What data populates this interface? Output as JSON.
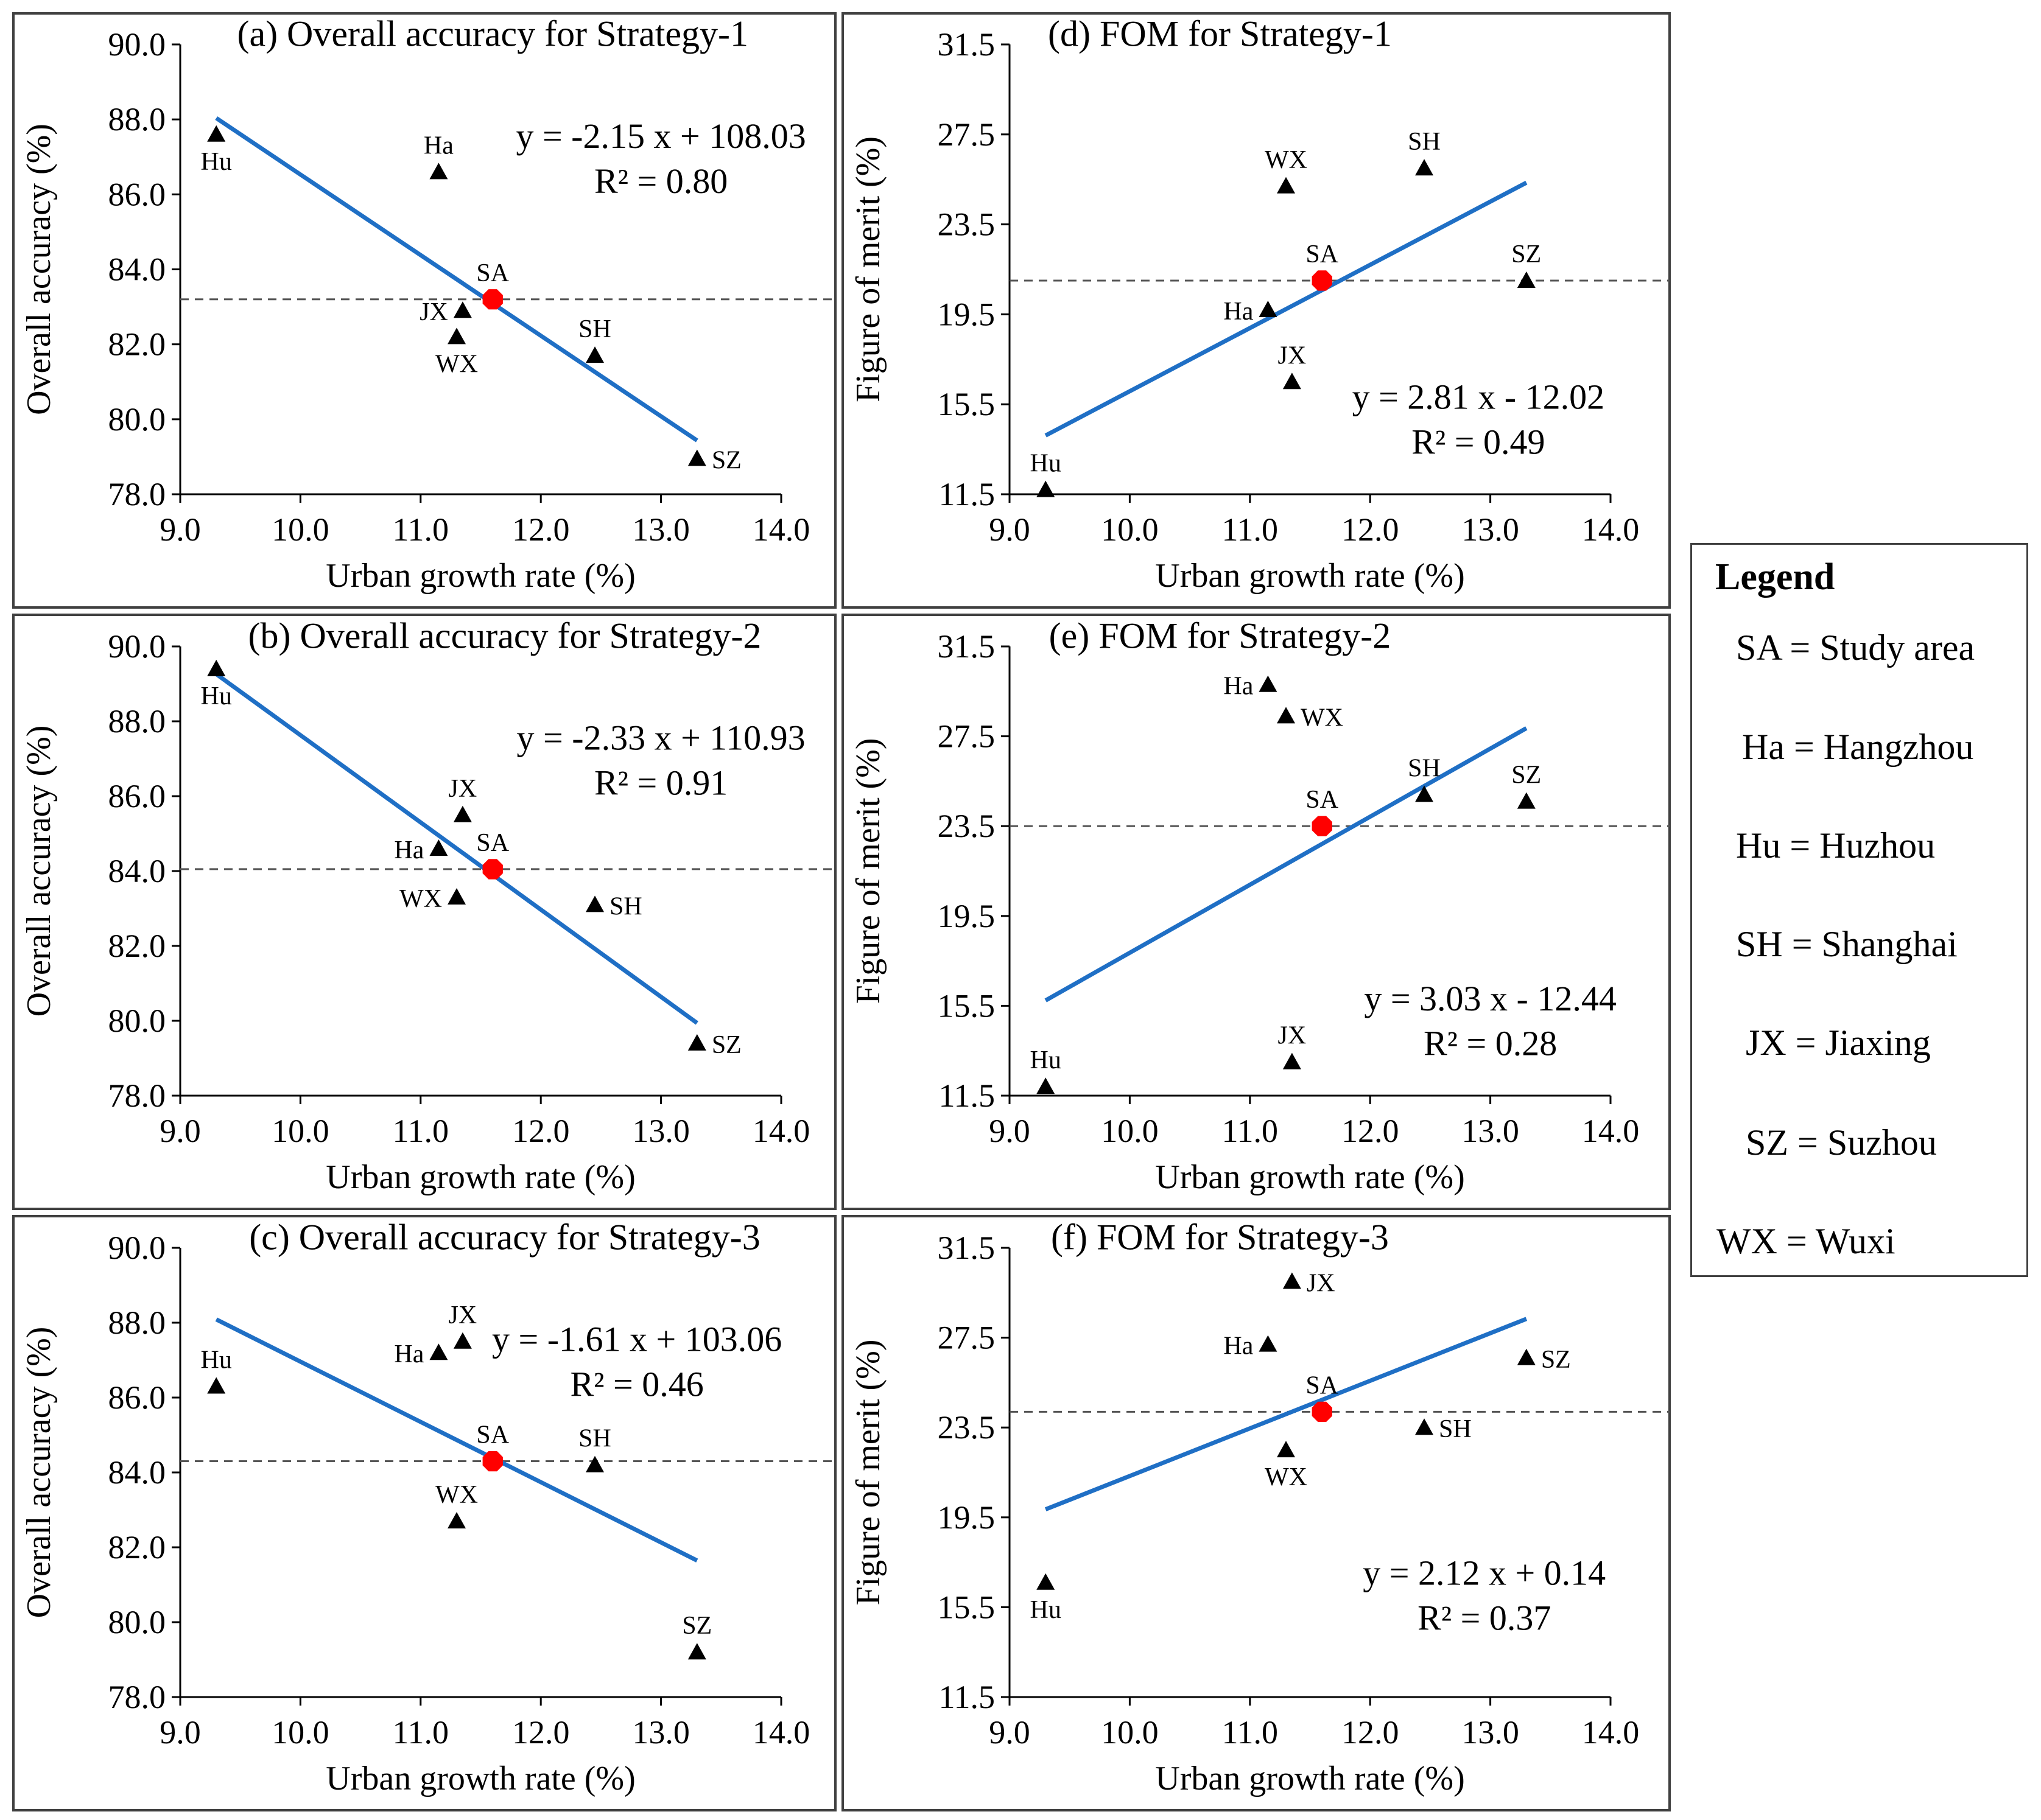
{
  "legend": {
    "title": "Legend",
    "items": [
      "SA = Study area",
      "Ha = Hangzhou",
      "Hu = Huzhou",
      "SH = Shanghai",
      "JX = Jiaxing",
      "SZ = Suzhou",
      "WX = Wuxi"
    ]
  },
  "colors": {
    "trend": "#1f6fc5",
    "study_area": "#ff0000",
    "city_marker": "#000000",
    "axis": "#000000",
    "mean_line": "#555555"
  },
  "chart_data": [
    {
      "id": "a",
      "type": "scatter",
      "title": "(a) Overall accuracy for Strategy-1",
      "xlabel": "Urban growth rate (%)",
      "ylabel": "Overall accuracy (%)",
      "xlim": [
        9.0,
        14.0
      ],
      "ylim": [
        78.0,
        90.0
      ],
      "xticks": [
        "9.0",
        "10.0",
        "11.0",
        "12.0",
        "13.0",
        "14.0"
      ],
      "yticks": [
        "78.0",
        "80.0",
        "82.0",
        "84.0",
        "86.0",
        "88.0",
        "90.0"
      ],
      "equation": "y = -2.15 x + 108.03",
      "r2": "R² = 0.80",
      "trend": {
        "slope": -2.15,
        "intercept": 108.03,
        "x_range": [
          9.3,
          13.3
        ]
      },
      "mean_y": 83.2,
      "points": [
        {
          "label": "Hu",
          "x": 9.3,
          "y": 87.6,
          "lpos": "below"
        },
        {
          "label": "Ha",
          "x": 11.15,
          "y": 86.6,
          "lpos": "above"
        },
        {
          "label": "SA",
          "x": 11.6,
          "y": 83.2,
          "lpos": "above",
          "study": true
        },
        {
          "label": "JX",
          "x": 11.35,
          "y": 82.9,
          "lpos": "left"
        },
        {
          "label": "WX",
          "x": 11.3,
          "y": 82.2,
          "lpos": "below"
        },
        {
          "label": "SH",
          "x": 12.45,
          "y": 81.7,
          "lpos": "above"
        },
        {
          "label": "SZ",
          "x": 13.3,
          "y": 78.95,
          "lpos": "right"
        }
      ]
    },
    {
      "id": "b",
      "type": "scatter",
      "title": "(b) Overall accuracy for Strategy-2",
      "xlabel": "Urban growth rate (%)",
      "ylabel": "Overall accuracy (%)",
      "xlim": [
        9.0,
        14.0
      ],
      "ylim": [
        78.0,
        90.0
      ],
      "xticks": [
        "9.0",
        "10.0",
        "11.0",
        "12.0",
        "13.0",
        "14.0"
      ],
      "yticks": [
        "78.0",
        "80.0",
        "82.0",
        "84.0",
        "86.0",
        "88.0",
        "90.0"
      ],
      "equation": "y = -2.33 x + 110.93",
      "r2": "R² = 0.91",
      "trend": {
        "slope": -2.33,
        "intercept": 110.93,
        "x_range": [
          9.3,
          13.3
        ]
      },
      "mean_y": 84.05,
      "points": [
        {
          "label": "Hu",
          "x": 9.3,
          "y": 89.4,
          "lpos": "below"
        },
        {
          "label": "JX",
          "x": 11.35,
          "y": 85.5,
          "lpos": "above"
        },
        {
          "label": "Ha",
          "x": 11.15,
          "y": 84.6,
          "lpos": "left"
        },
        {
          "label": "SA",
          "x": 11.6,
          "y": 84.05,
          "lpos": "above",
          "study": true
        },
        {
          "label": "WX",
          "x": 11.3,
          "y": 83.3,
          "lpos": "left"
        },
        {
          "label": "SH",
          "x": 12.45,
          "y": 83.1,
          "lpos": "right"
        },
        {
          "label": "SZ",
          "x": 13.3,
          "y": 79.4,
          "lpos": "right"
        }
      ]
    },
    {
      "id": "c",
      "type": "scatter",
      "title": "(c) Overall accuracy for Strategy-3",
      "xlabel": "Urban growth rate (%)",
      "ylabel": "Overall accuracy (%)",
      "xlim": [
        9.0,
        14.0
      ],
      "ylim": [
        78.0,
        90.0
      ],
      "xticks": [
        "9.0",
        "10.0",
        "11.0",
        "12.0",
        "13.0",
        "14.0"
      ],
      "yticks": [
        "78.0",
        "80.0",
        "82.0",
        "84.0",
        "86.0",
        "88.0",
        "90.0"
      ],
      "equation": "y = -1.61 x + 103.06",
      "r2": "R² = 0.46",
      "trend": {
        "slope": -1.61,
        "intercept": 103.06,
        "x_range": [
          9.3,
          13.3
        ]
      },
      "mean_y": 84.3,
      "points": [
        {
          "label": "JX",
          "x": 11.35,
          "y": 87.5,
          "lpos": "above"
        },
        {
          "label": "Ha",
          "x": 11.15,
          "y": 87.2,
          "lpos": "left"
        },
        {
          "label": "Hu",
          "x": 9.3,
          "y": 86.3,
          "lpos": "above"
        },
        {
          "label": "SA",
          "x": 11.6,
          "y": 84.3,
          "lpos": "above",
          "study": true
        },
        {
          "label": "SH",
          "x": 12.45,
          "y": 84.2,
          "lpos": "above"
        },
        {
          "label": "WX",
          "x": 11.3,
          "y": 82.7,
          "lpos": "above"
        },
        {
          "label": "SZ",
          "x": 13.3,
          "y": 79.2,
          "lpos": "above"
        }
      ]
    },
    {
      "id": "d",
      "type": "scatter",
      "title": "(d) FOM for Strategy-1",
      "xlabel": "Urban growth rate (%)",
      "ylabel": "Figure of merit (%)",
      "xlim": [
        9.0,
        14.0
      ],
      "ylim": [
        11.5,
        31.5
      ],
      "xticks": [
        "9.0",
        "10.0",
        "11.0",
        "12.0",
        "13.0",
        "14.0"
      ],
      "yticks": [
        "11.5",
        "15.5",
        "19.5",
        "23.5",
        "27.5",
        "31.5"
      ],
      "equation": "y = 2.81 x - 12.02",
      "r2": "R² = 0.49",
      "trend": {
        "slope": 2.81,
        "intercept": -12.02,
        "x_range": [
          9.3,
          13.3
        ]
      },
      "mean_y": 21.0,
      "points": [
        {
          "label": "SH",
          "x": 12.45,
          "y": 26.0,
          "lpos": "above"
        },
        {
          "label": "WX",
          "x": 11.3,
          "y": 25.2,
          "lpos": "above"
        },
        {
          "label": "SA",
          "x": 11.6,
          "y": 21.0,
          "lpos": "above",
          "study": true
        },
        {
          "label": "SZ",
          "x": 13.3,
          "y": 21.0,
          "lpos": "above"
        },
        {
          "label": "Ha",
          "x": 11.15,
          "y": 19.7,
          "lpos": "left"
        },
        {
          "label": "JX",
          "x": 11.35,
          "y": 16.5,
          "lpos": "above"
        },
        {
          "label": "Hu",
          "x": 9.3,
          "y": 11.7,
          "lpos": "above"
        }
      ]
    },
    {
      "id": "e",
      "type": "scatter",
      "title": "(e) FOM for Strategy-2",
      "xlabel": "Urban growth rate (%)",
      "ylabel": "Figure of merit (%)",
      "xlim": [
        9.0,
        14.0
      ],
      "ylim": [
        11.5,
        31.5
      ],
      "xticks": [
        "9.0",
        "10.0",
        "11.0",
        "12.0",
        "13.0",
        "14.0"
      ],
      "yticks": [
        "11.5",
        "15.5",
        "19.5",
        "23.5",
        "27.5",
        "31.5"
      ],
      "equation": "y = 3.03 x - 12.44",
      "r2": "R² = 0.28",
      "trend": {
        "slope": 3.03,
        "intercept": -12.44,
        "x_range": [
          9.3,
          13.3
        ]
      },
      "mean_y": 23.5,
      "points": [
        {
          "label": "Ha",
          "x": 11.15,
          "y": 29.8,
          "lpos": "left"
        },
        {
          "label": "WX",
          "x": 11.3,
          "y": 28.4,
          "lpos": "right"
        },
        {
          "label": "SH",
          "x": 12.45,
          "y": 24.9,
          "lpos": "above"
        },
        {
          "label": "SZ",
          "x": 13.3,
          "y": 24.6,
          "lpos": "above"
        },
        {
          "label": "SA",
          "x": 11.6,
          "y": 23.5,
          "lpos": "above",
          "study": true
        },
        {
          "label": "JX",
          "x": 11.35,
          "y": 13.0,
          "lpos": "above"
        },
        {
          "label": "Hu",
          "x": 9.3,
          "y": 11.9,
          "lpos": "above"
        }
      ]
    },
    {
      "id": "f",
      "type": "scatter",
      "title": "(f) FOM for Strategy-3",
      "xlabel": "Urban growth rate (%)",
      "ylabel": "Figure of merit (%)",
      "xlim": [
        9.0,
        14.0
      ],
      "ylim": [
        11.5,
        31.5
      ],
      "xticks": [
        "9.0",
        "10.0",
        "11.0",
        "12.0",
        "13.0",
        "14.0"
      ],
      "yticks": [
        "11.5",
        "15.5",
        "19.5",
        "23.5",
        "27.5",
        "31.5"
      ],
      "equation": "y = 2.12 x + 0.14",
      "r2": "R² = 0.37",
      "trend": {
        "slope": 2.12,
        "intercept": 0.14,
        "x_range": [
          9.3,
          13.3
        ]
      },
      "mean_y": 24.2,
      "points": [
        {
          "label": "JX",
          "x": 11.35,
          "y": 30.0,
          "lpos": "right"
        },
        {
          "label": "Ha",
          "x": 11.15,
          "y": 27.2,
          "lpos": "left"
        },
        {
          "label": "SZ",
          "x": 13.3,
          "y": 26.6,
          "lpos": "right"
        },
        {
          "label": "SA",
          "x": 11.6,
          "y": 24.2,
          "lpos": "above",
          "study": true
        },
        {
          "label": "SH",
          "x": 12.45,
          "y": 23.5,
          "lpos": "right"
        },
        {
          "label": "WX",
          "x": 11.3,
          "y": 22.5,
          "lpos": "below"
        },
        {
          "label": "Hu",
          "x": 9.3,
          "y": 16.6,
          "lpos": "below"
        }
      ]
    }
  ]
}
